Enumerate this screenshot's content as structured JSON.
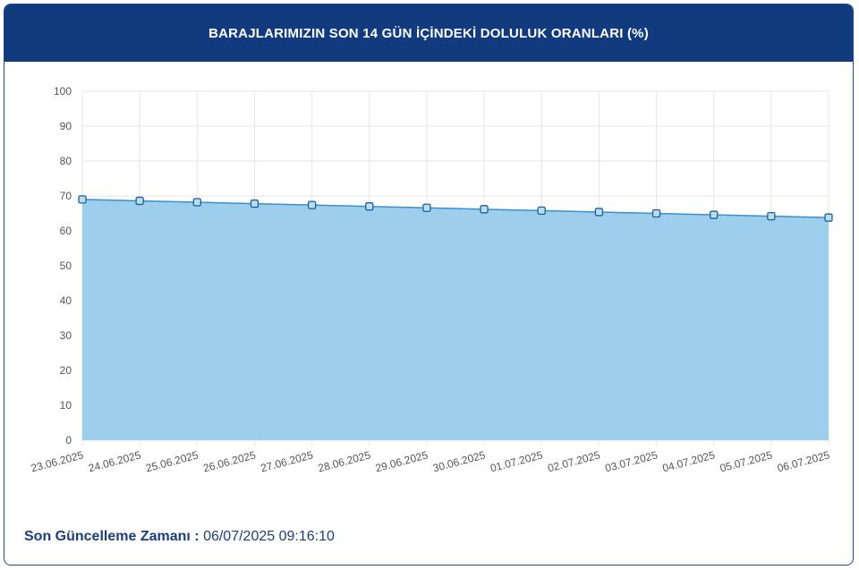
{
  "header": {
    "title": "BARAJLARIMIZIN SON 14 GÜN İÇİNDEKİ DOLULUK ORANLARI (%)"
  },
  "footer": {
    "label": "Son Güncelleme Zamanı :",
    "value": "06/07/2025 09:16:10"
  },
  "colors": {
    "header_bg": "#123b7f",
    "area_fill": "#9dcfec",
    "line": "#3a8fcf",
    "marker": "#3a8fcf",
    "grid": "#e6e6e6"
  },
  "chart_data": {
    "type": "area",
    "title": "BARAJLARIMIZIN SON 14 GÜN İÇİNDEKİ DOLULUK ORANLARI (%)",
    "xlabel": "",
    "ylabel": "",
    "ylim": [
      0,
      100
    ],
    "yticks": [
      0,
      10,
      20,
      30,
      40,
      50,
      60,
      70,
      80,
      90,
      100
    ],
    "grid": true,
    "categories": [
      "23.06.2025",
      "24.06.2025",
      "25.06.2025",
      "26.06.2025",
      "27.06.2025",
      "28.06.2025",
      "29.06.2025",
      "30.06.2025",
      "01.07.2025",
      "02.07.2025",
      "03.07.2025",
      "04.07.2025",
      "05.07.2025",
      "06.07.2025"
    ],
    "values": [
      69.0,
      68.6,
      68.2,
      67.8,
      67.4,
      67.0,
      66.6,
      66.2,
      65.8,
      65.4,
      65.0,
      64.6,
      64.2,
      63.8
    ]
  }
}
